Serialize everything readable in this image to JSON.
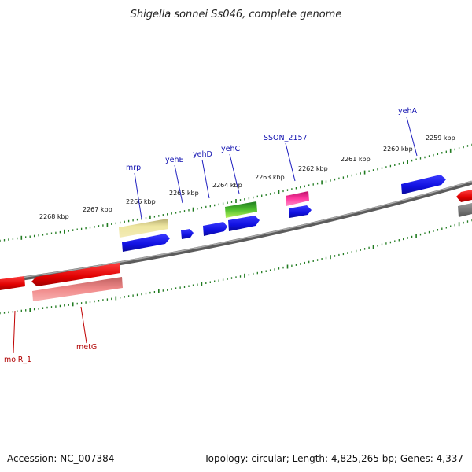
{
  "title": "Shigella sonnei Ss046, complete genome",
  "footer": {
    "accession": "Accession: NC_007384",
    "stats": "Topology: circular; Length: 4,825,265 bp; Genes: 4,337"
  },
  "colors": {
    "backbone": "#7a7a7a",
    "ticks": "#1f7a1f",
    "forward_gene": "#1414e0",
    "reverse_gene": "#e00000",
    "forward_label": "#1010b0",
    "reverse_label": "#b00000"
  },
  "scale_ticks": [
    {
      "label": "2268 kbp"
    },
    {
      "label": "2267 kbp"
    },
    {
      "label": "2266 kbp"
    },
    {
      "label": "2265 kbp"
    },
    {
      "label": "2264 kbp"
    },
    {
      "label": "2263 kbp"
    },
    {
      "label": "2262 kbp"
    },
    {
      "label": "2261 kbp"
    },
    {
      "label": "2260 kbp"
    },
    {
      "label": "2259 kbp"
    }
  ],
  "gene_labels": {
    "forward": [
      "mrp",
      "yehE",
      "yehD",
      "yehC",
      "SSON_2157",
      "yehA"
    ],
    "reverse": [
      "molR_1",
      "metG"
    ]
  }
}
